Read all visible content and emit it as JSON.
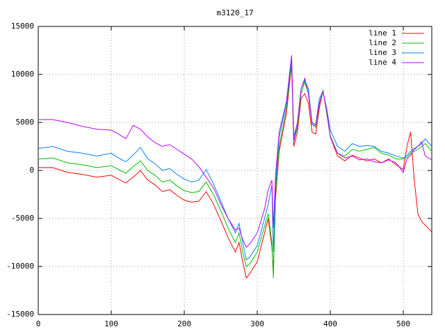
{
  "chart_data": {
    "type": "line",
    "title": "m3120_17",
    "x": [
      0,
      20,
      40,
      60,
      80,
      100,
      110,
      120,
      130,
      140,
      150,
      160,
      170,
      180,
      190,
      200,
      210,
      220,
      230,
      240,
      250,
      260,
      270,
      275,
      280,
      285,
      290,
      300,
      310,
      315,
      320,
      322,
      325,
      330,
      340,
      347,
      350,
      355,
      360,
      365,
      370,
      375,
      380,
      385,
      390,
      395,
      400,
      410,
      420,
      430,
      440,
      450,
      460,
      470,
      480,
      490,
      500,
      505,
      510,
      515,
      520,
      525,
      530,
      539
    ],
    "series": [
      {
        "name": "line 1",
        "color": "#ff0000",
        "values": [
          300,
          300,
          -200,
          -400,
          -700,
          -500,
          -900,
          -1300,
          -700,
          0,
          -1000,
          -1500,
          -2200,
          -2000,
          -2600,
          -3100,
          -3300,
          -3200,
          -2200,
          -3500,
          -5200,
          -7000,
          -8500,
          -7500,
          -9500,
          -11200,
          -10700,
          -9500,
          -6500,
          -5000,
          -8000,
          -10500,
          -3000,
          2000,
          6000,
          11000,
          2500,
          4000,
          7500,
          8000,
          7000,
          4000,
          3800,
          6500,
          8300,
          6000,
          3500,
          1500,
          1000,
          1600,
          1300,
          1000,
          1200,
          800,
          1200,
          600,
          100,
          2500,
          4000,
          -1000,
          -4500,
          -5300,
          -5700,
          -6400
        ]
      },
      {
        "name": "line 2",
        "color": "#00c000",
        "values": [
          1200,
          1300,
          800,
          600,
          300,
          500,
          100,
          -300,
          400,
          1000,
          0,
          -500,
          -1200,
          -1000,
          -1600,
          -2100,
          -2300,
          -2200,
          -1200,
          -2500,
          -4200,
          -6000,
          -7500,
          -6500,
          -8500,
          -10000,
          -9700,
          -8500,
          -5800,
          -4500,
          -7500,
          -11200,
          -2500,
          2500,
          6500,
          11200,
          3000,
          4500,
          8000,
          9200,
          8000,
          4800,
          4500,
          7000,
          8400,
          6000,
          3600,
          1800,
          1500,
          2200,
          2000,
          2200,
          2400,
          1800,
          1600,
          1200,
          1200,
          1400,
          1800,
          2000,
          2200,
          2500,
          2800,
          2000
        ]
      },
      {
        "name": "line 3",
        "color": "#0080ff",
        "values": [
          2300,
          2500,
          2000,
          1800,
          1500,
          1800,
          1300,
          900,
          1600,
          2400,
          1200,
          700,
          0,
          200,
          -400,
          -900,
          -1200,
          -1000,
          100,
          -1400,
          -3200,
          -5000,
          -6500,
          -5500,
          -7500,
          -9300,
          -9000,
          -7800,
          -5000,
          -3500,
          -1500,
          -8500,
          -1500,
          3500,
          7000,
          11500,
          3500,
          5000,
          8500,
          9400,
          8500,
          5000,
          4800,
          7500,
          8200,
          6500,
          4200,
          2500,
          2000,
          2800,
          2500,
          2600,
          2500,
          2000,
          1800,
          1500,
          1300,
          1600,
          2000,
          2300,
          2500,
          2800,
          3300,
          2500
        ]
      },
      {
        "name": "line 4",
        "color": "#c000ff",
        "values": [
          5300,
          5300,
          5000,
          4600,
          4300,
          4200,
          3800,
          3300,
          4700,
          4300,
          3500,
          2900,
          2500,
          2700,
          2200,
          1700,
          1200,
          400,
          -700,
          -1800,
          -3500,
          -5000,
          -6200,
          -6000,
          -7200,
          -8000,
          -7600,
          -6500,
          -4000,
          -2000,
          -1000,
          -6000,
          -500,
          4000,
          7200,
          12000,
          3000,
          5000,
          8500,
          9600,
          8000,
          4800,
          4700,
          7000,
          8200,
          6300,
          3500,
          1800,
          1300,
          1500,
          1100,
          1200,
          900,
          800,
          1100,
          800,
          -200,
          1200,
          1600,
          2200,
          2500,
          3000,
          1500,
          1100
        ]
      }
    ],
    "xlim": [
      0,
      539
    ],
    "xticks": [
      0,
      100,
      200,
      300,
      400,
      500
    ],
    "ylim": [
      -15000,
      15000
    ],
    "yticks": [
      -15000,
      -10000,
      -5000,
      0,
      5000,
      10000,
      15000
    ],
    "grid": true,
    "legend": "top-right"
  }
}
